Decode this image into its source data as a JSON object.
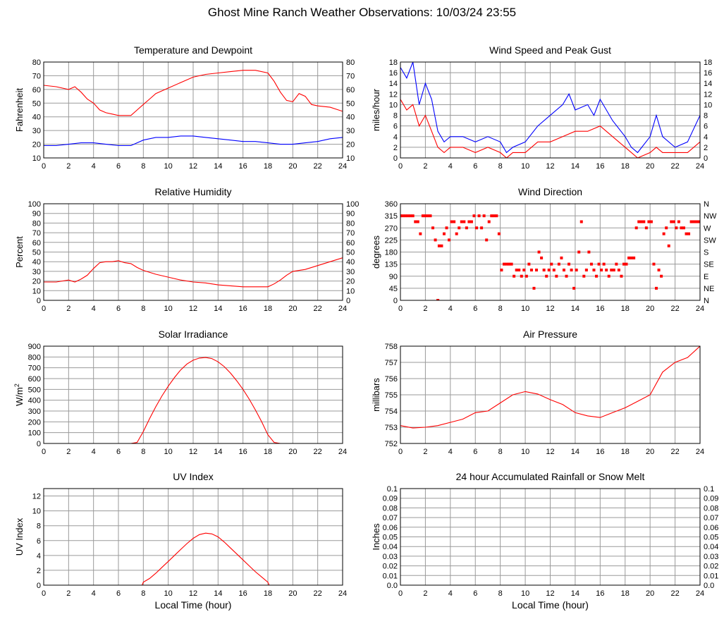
{
  "page_title": "Ghost Mine Ranch Weather Observations: 10/03/24 23:55",
  "colors": {
    "red": "#ff0000",
    "blue": "#0000ff",
    "grid": "#9a9a9a",
    "frame": "#000000"
  },
  "chart_data": [
    {
      "id": "temperature",
      "type": "line",
      "title": "Temperature and Dewpoint",
      "ylabel": "Fahrenheit",
      "xlabel": "",
      "xlim": [
        0,
        24
      ],
      "ylim": [
        10,
        80
      ],
      "xticks": [
        0,
        2,
        4,
        6,
        8,
        10,
        12,
        14,
        16,
        18,
        20,
        22,
        24
      ],
      "yticks": [
        10,
        20,
        30,
        40,
        50,
        60,
        70,
        80
      ],
      "right_ticks": [
        "10",
        "20",
        "30",
        "40",
        "50",
        "60",
        "70",
        "80"
      ],
      "series": [
        {
          "name": "Temperature",
          "color": "#ff0000",
          "x": [
            0,
            1,
            2,
            2.5,
            3,
            3.5,
            4,
            4.5,
            5,
            5.5,
            6,
            6.5,
            7,
            7.5,
            8,
            8.5,
            9,
            10,
            11,
            12,
            13,
            14,
            15,
            16,
            17,
            18,
            18.5,
            19,
            19.5,
            20,
            20.5,
            21,
            21.5,
            22,
            23,
            24
          ],
          "y": [
            63,
            62,
            60,
            62,
            58,
            53,
            50,
            45,
            43,
            42,
            41,
            41,
            41,
            45,
            49,
            53,
            57,
            61,
            65,
            69,
            71,
            72,
            73,
            74,
            74,
            72,
            66,
            58,
            52,
            51,
            57,
            55,
            49,
            48,
            47,
            44
          ]
        },
        {
          "name": "Dewpoint",
          "color": "#0000ff",
          "x": [
            0,
            1,
            2,
            3,
            4,
            5,
            6,
            7,
            8,
            9,
            10,
            11,
            12,
            13,
            14,
            15,
            16,
            17,
            18,
            19,
            20,
            21,
            22,
            23,
            24
          ],
          "y": [
            19,
            19,
            20,
            21,
            21,
            20,
            19,
            19,
            23,
            25,
            25,
            26,
            26,
            25,
            24,
            23,
            22,
            22,
            21,
            20,
            20,
            21,
            22,
            24,
            25
          ]
        }
      ]
    },
    {
      "id": "wind_speed",
      "type": "line",
      "title": "Wind Speed and Peak Gust",
      "ylabel": "miles/hour",
      "xlabel": "",
      "xlim": [
        0,
        24
      ],
      "ylim": [
        0,
        18
      ],
      "xticks": [
        0,
        2,
        4,
        6,
        8,
        10,
        12,
        14,
        16,
        18,
        20,
        22,
        24
      ],
      "yticks": [
        0,
        2,
        4,
        6,
        8,
        10,
        12,
        14,
        16,
        18
      ],
      "right_ticks": [
        "0",
        "2",
        "4",
        "6",
        "8",
        "10",
        "12",
        "14",
        "16",
        "18"
      ],
      "series": [
        {
          "name": "Peak Gust",
          "color": "#0000ff",
          "x": [
            0,
            0.5,
            1,
            1.5,
            2,
            2.5,
            3,
            3.5,
            4,
            5,
            6,
            7,
            8,
            8.5,
            9,
            10,
            11,
            12,
            13,
            13.5,
            14,
            15,
            15.5,
            16,
            17,
            18,
            18.5,
            19,
            20,
            20.5,
            21,
            22,
            23,
            24
          ],
          "y": [
            17,
            15,
            18,
            10,
            14,
            11,
            5,
            3,
            4,
            4,
            3,
            4,
            3,
            1,
            2,
            3,
            6,
            8,
            10,
            12,
            9,
            10,
            8,
            11,
            7,
            4,
            2,
            1,
            4,
            8,
            4,
            2,
            3,
            8
          ]
        },
        {
          "name": "Wind Speed",
          "color": "#ff0000",
          "x": [
            0,
            0.5,
            1,
            1.5,
            2,
            2.5,
            3,
            3.5,
            4,
            5,
            6,
            7,
            8,
            8.5,
            9,
            10,
            11,
            12,
            13,
            14,
            15,
            16,
            17,
            18,
            18.5,
            19,
            20,
            20.5,
            21,
            22,
            23,
            24
          ],
          "y": [
            11,
            9,
            10,
            6,
            8,
            5,
            2,
            1,
            2,
            2,
            1,
            2,
            1,
            0,
            1,
            1,
            3,
            3,
            4,
            5,
            5,
            6,
            4,
            2,
            1,
            0,
            1,
            2,
            1,
            1,
            1,
            3
          ]
        }
      ]
    },
    {
      "id": "humidity",
      "type": "line",
      "title": "Relative Humidity",
      "ylabel": "Percent",
      "xlabel": "",
      "xlim": [
        0,
        24
      ],
      "ylim": [
        0,
        100
      ],
      "xticks": [
        0,
        2,
        4,
        6,
        8,
        10,
        12,
        14,
        16,
        18,
        20,
        22,
        24
      ],
      "yticks": [
        0,
        10,
        20,
        30,
        40,
        50,
        60,
        70,
        80,
        90,
        100
      ],
      "right_ticks": [
        "0",
        "10",
        "20",
        "30",
        "40",
        "50",
        "60",
        "70",
        "80",
        "90",
        "100"
      ],
      "series": [
        {
          "name": "Relative Humidity",
          "color": "#ff0000",
          "x": [
            0,
            1,
            2,
            2.5,
            3,
            3.5,
            4,
            4.5,
            5,
            5.5,
            6,
            6.5,
            7,
            7.5,
            8,
            9,
            10,
            11,
            12,
            13,
            14,
            15,
            16,
            17,
            18,
            18.5,
            19,
            19.5,
            20,
            21,
            22,
            23,
            24
          ],
          "y": [
            19,
            19,
            21,
            19,
            22,
            26,
            33,
            39,
            40,
            40,
            41,
            39,
            38,
            34,
            31,
            27,
            24,
            21,
            19,
            18,
            16,
            15,
            14,
            14,
            14,
            17,
            21,
            26,
            30,
            32,
            36,
            40,
            44
          ]
        }
      ]
    },
    {
      "id": "wind_direction",
      "type": "scatter",
      "title": "Wind Direction",
      "ylabel": "degrees",
      "xlabel": "",
      "xlim": [
        0,
        24
      ],
      "ylim": [
        0,
        360
      ],
      "xticks": [
        0,
        2,
        4,
        6,
        8,
        10,
        12,
        14,
        16,
        18,
        20,
        22,
        24
      ],
      "yticks": [
        0,
        45,
        90,
        135,
        180,
        225,
        270,
        315,
        360
      ],
      "right_ticks": [
        "N",
        "NE",
        "E",
        "SE",
        "S",
        "SW",
        "W",
        "NW",
        "N"
      ],
      "series": [
        {
          "name": "Wind Direction",
          "color": "#ff0000",
          "x": [
            0,
            0.2,
            0.4,
            0.6,
            0.8,
            1.0,
            1.2,
            1.4,
            1.6,
            1.8,
            2.0,
            2.2,
            2.4,
            2.6,
            2.8,
            3.0,
            3.1,
            3.3,
            3.5,
            3.7,
            3.9,
            4.1,
            4.3,
            4.5,
            4.7,
            4.9,
            5.1,
            5.3,
            5.5,
            5.7,
            5.9,
            6.1,
            6.3,
            6.5,
            6.7,
            6.9,
            7.1,
            7.3,
            7.5,
            7.7,
            7.9,
            8.1,
            8.3,
            8.5,
            8.7,
            8.9,
            9.1,
            9.3,
            9.5,
            9.7,
            9.9,
            10.1,
            10.3,
            10.5,
            10.7,
            10.9,
            11.1,
            11.3,
            11.5,
            11.7,
            11.9,
            12.1,
            12.3,
            12.5,
            12.7,
            12.9,
            13.1,
            13.3,
            13.5,
            13.7,
            13.9,
            14.1,
            14.3,
            14.5,
            14.7,
            14.9,
            15.1,
            15.3,
            15.5,
            15.7,
            15.9,
            16.1,
            16.3,
            16.5,
            16.7,
            16.9,
            17.1,
            17.3,
            17.5,
            17.7,
            17.9,
            18.1,
            18.3,
            18.5,
            18.7,
            18.9,
            19.1,
            19.3,
            19.5,
            19.7,
            19.9,
            20.1,
            20.3,
            20.5,
            20.7,
            20.9,
            21.1,
            21.3,
            21.5,
            21.7,
            21.9,
            22.1,
            22.3,
            22.5,
            22.7,
            22.9,
            23.1,
            23.3,
            23.5,
            23.7,
            23.9
          ],
          "y": [
            315,
            315,
            315,
            315,
            315,
            315,
            293,
            293,
            248,
            315,
            315,
            315,
            315,
            270,
            225,
            0,
            203,
            203,
            248,
            270,
            225,
            293,
            293,
            248,
            270,
            293,
            293,
            270,
            293,
            293,
            315,
            270,
            315,
            270,
            315,
            225,
            293,
            315,
            315,
            315,
            248,
            113,
            135,
            135,
            135,
            135,
            90,
            113,
            113,
            90,
            113,
            90,
            135,
            113,
            45,
            113,
            180,
            158,
            113,
            90,
            113,
            135,
            113,
            90,
            135,
            158,
            113,
            90,
            135,
            113,
            45,
            113,
            180,
            293,
            90,
            113,
            180,
            135,
            113,
            90,
            135,
            113,
            135,
            113,
            90,
            113,
            113,
            135,
            113,
            90,
            135,
            135,
            158,
            158,
            158,
            270,
            293,
            293,
            293,
            270,
            293,
            293,
            135,
            45,
            113,
            90,
            248,
            270,
            203,
            293,
            293,
            270,
            293,
            270,
            270,
            248,
            248,
            293,
            293,
            293,
            293
          ]
        }
      ]
    },
    {
      "id": "solar",
      "type": "line",
      "title": "Solar Irradiance",
      "ylabel": "W/m2",
      "xlabel": "",
      "xlim": [
        0,
        24
      ],
      "ylim": [
        0,
        900
      ],
      "xticks": [
        0,
        2,
        4,
        6,
        8,
        10,
        12,
        14,
        16,
        18,
        20,
        22,
        24
      ],
      "yticks": [
        0,
        100,
        200,
        300,
        400,
        500,
        600,
        700,
        800,
        900
      ],
      "right_ticks": [],
      "series": [
        {
          "name": "Solar Irradiance",
          "color": "#ff0000",
          "x": [
            0,
            7,
            7.5,
            8,
            8.5,
            9,
            9.5,
            10,
            10.5,
            11,
            11.5,
            12,
            12.5,
            13,
            13.5,
            14,
            14.5,
            15,
            15.5,
            16,
            16.5,
            17,
            17.5,
            18,
            18.5,
            19,
            24
          ],
          "y": [
            0,
            0,
            10,
            110,
            230,
            340,
            440,
            530,
            610,
            680,
            735,
            770,
            790,
            795,
            785,
            755,
            710,
            650,
            580,
            500,
            410,
            310,
            200,
            80,
            10,
            0,
            0
          ]
        }
      ]
    },
    {
      "id": "pressure",
      "type": "line",
      "title": "Air Pressure",
      "ylabel": "millibars",
      "xlabel": "",
      "xlim": [
        0,
        24
      ],
      "ylim": [
        752,
        758
      ],
      "xticks": [
        0,
        2,
        4,
        6,
        8,
        10,
        12,
        14,
        16,
        18,
        20,
        22,
        24
      ],
      "yticks": [
        752,
        753,
        754,
        755,
        756,
        757,
        758
      ],
      "right_ticks": [],
      "series": [
        {
          "name": "Air Pressure",
          "color": "#ff0000",
          "x": [
            0,
            1,
            2,
            3,
            4,
            5,
            6,
            7,
            8,
            9,
            10,
            11,
            12,
            13,
            14,
            15,
            16,
            17,
            18,
            19,
            20,
            21,
            22,
            23,
            24
          ],
          "y": [
            753.1,
            752.95,
            753.0,
            753.1,
            753.3,
            753.5,
            753.9,
            754.0,
            754.5,
            755.0,
            755.2,
            755.05,
            754.7,
            754.4,
            753.9,
            753.7,
            753.6,
            753.9,
            754.2,
            754.6,
            755.0,
            756.4,
            757.0,
            757.3,
            758.0
          ]
        }
      ]
    },
    {
      "id": "uv",
      "type": "line",
      "title": "UV Index",
      "ylabel": "UV Index",
      "xlabel": "Local Time (hour)",
      "xlim": [
        0,
        24
      ],
      "ylim": [
        0,
        13
      ],
      "xticks": [
        0,
        2,
        4,
        6,
        8,
        10,
        12,
        14,
        16,
        18,
        20,
        22,
        24
      ],
      "yticks": [
        0,
        2,
        4,
        6,
        8,
        10,
        12
      ],
      "right_ticks": [],
      "series": [
        {
          "name": "UV Index",
          "color": "#ff0000",
          "x": [
            0,
            7.9,
            8,
            8.5,
            9,
            9.5,
            10,
            10.5,
            11,
            11.5,
            12,
            12.5,
            13,
            13.5,
            14,
            14.5,
            15,
            15.5,
            16,
            16.5,
            17,
            17.5,
            18,
            18.1,
            24
          ],
          "y": [
            0,
            0,
            0.4,
            0.9,
            1.6,
            2.4,
            3.2,
            4.0,
            4.8,
            5.6,
            6.3,
            6.8,
            7.0,
            6.9,
            6.5,
            5.8,
            5.0,
            4.2,
            3.4,
            2.6,
            1.8,
            1.1,
            0.4,
            0,
            0
          ]
        }
      ]
    },
    {
      "id": "rain",
      "type": "line",
      "title": "24 hour Accumulated Rainfall or Snow Melt",
      "ylabel": "Inches",
      "xlabel": "Local Time (hour)",
      "xlim": [
        0,
        24
      ],
      "ylim": [
        0,
        0.1
      ],
      "xticks": [
        0,
        2,
        4,
        6,
        8,
        10,
        12,
        14,
        16,
        18,
        20,
        22,
        24
      ],
      "yticks": [
        "0.0",
        "0.01",
        "0.02",
        "0.03",
        "0.04",
        "0.05",
        "0.06",
        "0.07",
        "0.08",
        "0.09",
        "0.1"
      ],
      "right_ticks": [
        "0.0",
        "0.01",
        "0.02",
        "0.03",
        "0.04",
        "0.05",
        "0.06",
        "0.07",
        "0.08",
        "0.09",
        "0.1"
      ],
      "series": [
        {
          "name": "Rainfall",
          "color": "#ff0000",
          "x": [
            0,
            24
          ],
          "y": [
            0,
            0
          ]
        }
      ]
    }
  ]
}
